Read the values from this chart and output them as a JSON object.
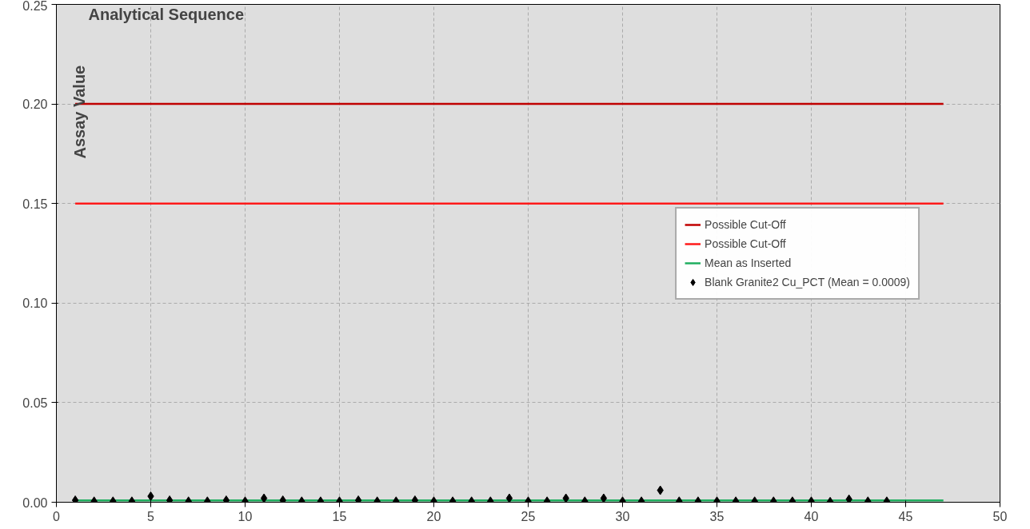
{
  "chart_data": {
    "type": "scatter",
    "xlabel": "Analytical Sequence",
    "ylabel": "Assay Value",
    "xlim": [
      0,
      50
    ],
    "xticks": [
      0,
      5,
      10,
      15,
      20,
      25,
      30,
      35,
      40,
      45,
      50
    ],
    "ylim": [
      0,
      0.25
    ],
    "yticks": [
      {
        "value": 0,
        "label": "0.00"
      },
      {
        "value": 0.05,
        "label": "0.05"
      },
      {
        "value": 0.1,
        "label": "0.10"
      },
      {
        "value": 0.15,
        "label": "0.15"
      },
      {
        "value": 0.2,
        "label": "0.20"
      },
      {
        "value": 0.25,
        "label": "0.25"
      }
    ],
    "grid": true,
    "legend": "right",
    "series": [
      {
        "name": "Possible Cut-Off",
        "type": "line",
        "marker": "none",
        "color": "#c00000",
        "x": [
          1,
          47
        ],
        "values": [
          0.2,
          0.2
        ]
      },
      {
        "name": "Possible Cut-Off",
        "type": "line",
        "marker": "none",
        "color": "#ff1a1a",
        "x": [
          1,
          47
        ],
        "values": [
          0.15,
          0.15
        ]
      },
      {
        "name": "Mean as Inserted",
        "type": "line",
        "marker": "none",
        "color": "#1fae5f",
        "x": [
          1,
          47
        ],
        "values": [
          0.0009,
          0.0009
        ]
      },
      {
        "name": "Blank Granite2 Cu_PCT (Mean = 0.0009)",
        "marker": "diamond",
        "color": "#000000",
        "x": [
          1,
          2,
          3,
          4,
          5,
          6,
          7,
          8,
          9,
          10,
          11,
          12,
          13,
          14,
          15,
          16,
          17,
          18,
          19,
          20,
          21,
          22,
          23,
          24,
          25,
          26,
          27,
          28,
          29,
          30,
          31,
          32,
          33,
          34,
          35,
          36,
          37,
          38,
          39,
          40,
          41,
          42,
          43,
          44
        ],
        "values": [
          0.001,
          0.0005,
          0.0005,
          0.0005,
          0.003,
          0.001,
          0.0005,
          0.0005,
          0.001,
          0.0005,
          0.002,
          0.001,
          0.0005,
          0.0005,
          0.0005,
          0.001,
          0.0005,
          0.0005,
          0.001,
          0.0005,
          0.0005,
          0.0005,
          0.0005,
          0.002,
          0.0005,
          0.0005,
          0.002,
          0.0005,
          0.002,
          0.0005,
          0.0005,
          0.006,
          0.0005,
          0.0005,
          0.0005,
          0.0005,
          0.0005,
          0.0005,
          0.0005,
          0.0005,
          0.0003,
          0.0015,
          0.0005,
          0.0005
        ]
      }
    ]
  }
}
